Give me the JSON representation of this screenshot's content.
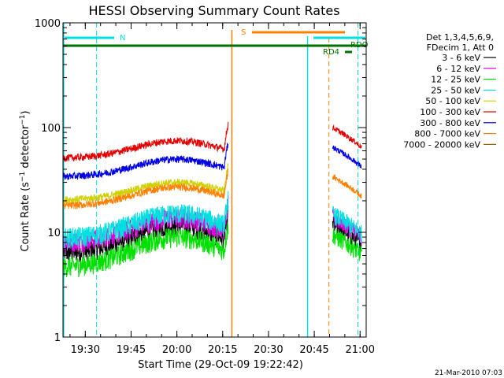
{
  "chart_data": {
    "type": "line",
    "title": "HESSI Observing Summary Count Rates",
    "xlabel": "Start Time (29-Oct-09 19:22:42)",
    "ylabel_main": "Count Rate (s",
    "ylabel_sup1": "−1",
    "ylabel_mid": " detector",
    "ylabel_sup2": "−1",
    "ylabel_end": ")",
    "footer": "21-Mar-2010 07:03",
    "x_range_minutes": [
      1162.7,
      1262.0
    ],
    "y_range": [
      1,
      1000
    ],
    "y_scale": "log",
    "x_ticks": [
      {
        "label": "19:30",
        "min": 1170
      },
      {
        "label": "19:45",
        "min": 1185
      },
      {
        "label": "20:00",
        "min": 1200
      },
      {
        "label": "20:15",
        "min": 1215
      },
      {
        "label": "20:30",
        "min": 1230
      },
      {
        "label": "20:45",
        "min": 1245
      },
      {
        "label": "21:00",
        "min": 1260
      }
    ],
    "y_ticks": [
      {
        "label": "1",
        "value": 1
      },
      {
        "label": "10",
        "value": 10
      },
      {
        "label": "100",
        "value": 100
      },
      {
        "label": "1000",
        "value": 1000
      }
    ],
    "legend": {
      "header": [
        "Det 1,3,4,5,6,9,",
        "FDecim 1, Att 0"
      ],
      "entries": [
        {
          "label": "3 - 6 keV",
          "color": "#000000"
        },
        {
          "label": "6 - 12 keV",
          "color": "#e000e0"
        },
        {
          "label": "12 - 25 keV",
          "color": "#00e000"
        },
        {
          "label": "25 - 50 keV",
          "color": "#00e0e0"
        },
        {
          "label": "50 - 100 keV",
          "color": "#d0d000"
        },
        {
          "label": "100 - 300 keV",
          "color": "#e00000"
        },
        {
          "label": "300 - 800 keV",
          "color": "#0000e0"
        },
        {
          "label": "800 - 7000 keV",
          "color": "#ff8000"
        },
        {
          "label": "7000 - 20000 keV",
          "color": "#a06000"
        }
      ]
    },
    "series": [
      {
        "name": "3 - 6 keV",
        "color": "#000000",
        "base1": 7.5,
        "base2": 12,
        "amp": 0.35
      },
      {
        "name": "6 - 12 keV",
        "color": "#e000e0",
        "base1": 9.5,
        "base2": 14,
        "amp": 0.3
      },
      {
        "name": "12 - 25 keV",
        "color": "#00e000",
        "base1": 5.5,
        "base2": 9.5,
        "amp": 0.4
      },
      {
        "name": "25 - 50 keV",
        "color": "#00e0e0",
        "base1": 10.5,
        "base2": 15,
        "amp": 0.3
      },
      {
        "name": "50 - 100 keV",
        "color": "#d0d000",
        "base1": 24,
        "base2": 0,
        "amp": 0.2
      },
      {
        "name": "100 - 300 keV",
        "color": "#e00000",
        "base1": 60,
        "base2": 100,
        "amp": 0.2
      },
      {
        "name": "300 - 800 keV",
        "color": "#0000e0",
        "base1": 40,
        "base2": 65,
        "amp": 0.2
      },
      {
        "name": "800 - 7000 keV",
        "color": "#ff8000",
        "base1": 21,
        "base2": 34,
        "amp": 0.22
      }
    ],
    "data_windows": [
      [
        1162.8,
        1216.8
      ],
      [
        1251.0,
        1260.5
      ]
    ],
    "annotations": [
      {
        "label": "N",
        "color": "#00e0e0"
      },
      {
        "label": "S",
        "color": "#ff8000"
      },
      {
        "label": "RD4",
        "color": "#007000"
      },
      {
        "label": "RDO",
        "color": "#007000"
      }
    ]
  }
}
